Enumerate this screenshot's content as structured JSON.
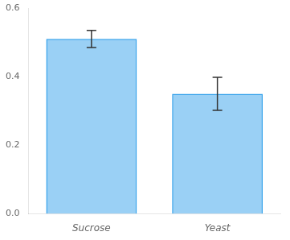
{
  "chart_data": {
    "type": "bar",
    "categories": [
      "Sucrose",
      "Yeast"
    ],
    "values": [
      0.51,
      0.35
    ],
    "errors": [
      0.025,
      0.048
    ],
    "ylim": [
      0.0,
      0.6
    ],
    "yticks": [
      {
        "value": 0.0,
        "label": "0.0"
      },
      0.2,
      0.4,
      0.6
    ],
    "grid": false
  }
}
